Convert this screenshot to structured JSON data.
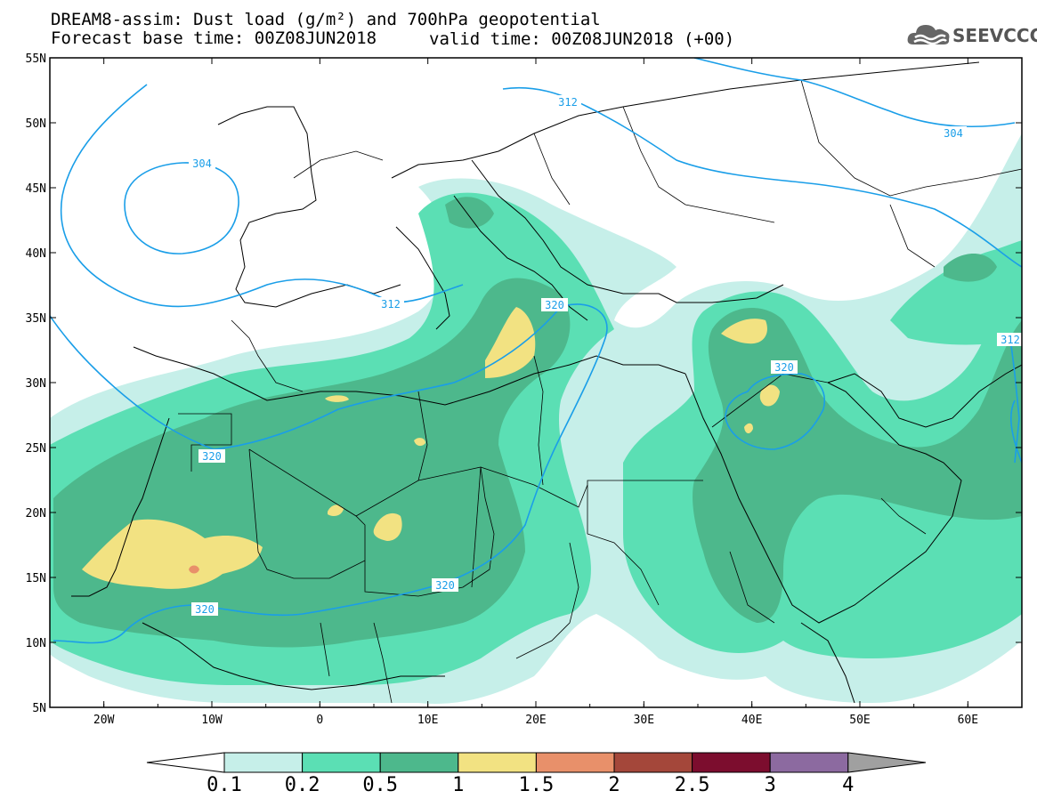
{
  "header": {
    "title_line1": "DREAM8-assim: Dust load (g/m²) and 700hPa geopotential",
    "base_time": "Forecast base time: 00Z08JUN2018",
    "valid_time": "valid time: 00Z08JUN2018 (+00)"
  },
  "logo": {
    "text": "SEEVCCC",
    "icon": "cloud-icon"
  },
  "map": {
    "lon_ticks": [
      "20W",
      "10W",
      "0",
      "10E",
      "20E",
      "30E",
      "40E",
      "50E",
      "60E"
    ],
    "lat_ticks": [
      "55N",
      "50N",
      "45N",
      "40N",
      "35N",
      "30N",
      "25N",
      "20N",
      "15N",
      "10N",
      "5N"
    ],
    "lon_values": [
      -20,
      -10,
      0,
      10,
      20,
      30,
      40,
      50,
      60
    ],
    "lat_values": [
      55,
      50,
      45,
      40,
      35,
      30,
      25,
      20,
      15,
      10,
      5
    ],
    "lon_range": [
      -25,
      65
    ],
    "lat_range": [
      5,
      55
    ],
    "contour_labels": [
      "304",
      "312",
      "312",
      "320",
      "320",
      "320",
      "320",
      "320",
      "304",
      "312"
    ],
    "contour_color": "#1a9ee8"
  },
  "colorbar": {
    "labels": [
      "0.1",
      "0.2",
      "0.5",
      "1",
      "1.5",
      "2",
      "2.5",
      "3",
      "4"
    ],
    "colors": [
      "#ffffff",
      "#c6efe9",
      "#5bdfb4",
      "#4db88c",
      "#f2e282",
      "#e8906a",
      "#a4473a",
      "#7c0d2e",
      "#8c6aa0",
      "#a0a0a0"
    ]
  }
}
